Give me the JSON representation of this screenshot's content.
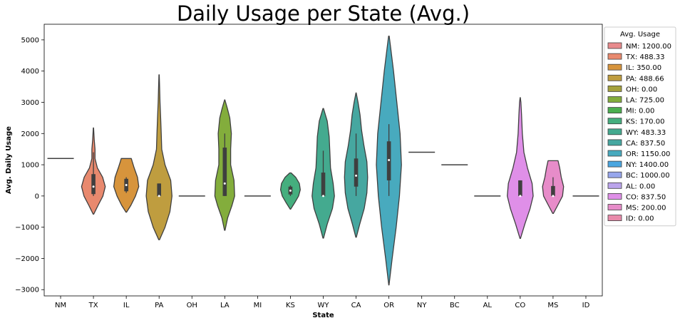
{
  "chart_data": {
    "type": "violin",
    "title": "Daily Usage per State (Avg.)",
    "xlabel": "State",
    "ylabel": "Avg. Daily Usage",
    "ylim": [
      -3200,
      5500
    ],
    "yticks": [
      -3000,
      -2000,
      -1000,
      0,
      1000,
      2000,
      3000,
      4000,
      5000
    ],
    "ytick_labels": [
      "−3000",
      "−2000",
      "−1000",
      "0",
      "1000",
      "2000",
      "3000",
      "4000",
      "5000"
    ],
    "grid": false,
    "legend": {
      "title": "Avg. Usage",
      "placement": "outside-right"
    },
    "categories": [
      "NM",
      "TX",
      "IL",
      "PA",
      "OH",
      "LA",
      "MI",
      "KS",
      "WY",
      "CA",
      "OR",
      "NY",
      "BC",
      "AL",
      "CO",
      "MS",
      "ID"
    ],
    "series": [
      {
        "state": "NM",
        "legend": "NM: 1200.00",
        "color": "#e88a8c",
        "min": 1200,
        "max": 1200,
        "q1": 1200,
        "q3": 1200,
        "median": 1200,
        "wlo": 1200,
        "whi": 1200,
        "profile": []
      },
      {
        "state": "TX",
        "legend": "TX: 488.33",
        "color": "#e8896e",
        "min": -580,
        "max": 2180,
        "q1": 60,
        "q3": 700,
        "median": 300,
        "wlo": 0,
        "whi": 1400,
        "profile": [
          [
            -580,
            0.02
          ],
          [
            -300,
            0.35
          ],
          [
            0,
            0.72
          ],
          [
            300,
            0.9
          ],
          [
            600,
            0.7
          ],
          [
            900,
            0.3
          ],
          [
            1200,
            0.12
          ],
          [
            1500,
            0.12
          ],
          [
            1800,
            0.06
          ],
          [
            2180,
            0.01
          ]
        ]
      },
      {
        "state": "IL",
        "legend": "IL: 350.00",
        "color": "#d7943c",
        "min": -520,
        "max": 1200,
        "q1": 150,
        "q3": 550,
        "median": 350,
        "wlo": 100,
        "whi": 600,
        "profile": [
          [
            -520,
            0.02
          ],
          [
            -300,
            0.35
          ],
          [
            0,
            0.7
          ],
          [
            300,
            0.95
          ],
          [
            600,
            0.85
          ],
          [
            900,
            0.6
          ],
          [
            1100,
            0.45
          ],
          [
            1200,
            0.38
          ]
        ]
      },
      {
        "state": "PA",
        "legend": "PA: 488.66",
        "color": "#bf9d3f",
        "min": -1400,
        "max": 3880,
        "q1": 0,
        "q3": 400,
        "median": 0,
        "wlo": 0,
        "whi": 400,
        "profile": [
          [
            -1400,
            0.03
          ],
          [
            -1000,
            0.45
          ],
          [
            -500,
            0.82
          ],
          [
            0,
            0.98
          ],
          [
            500,
            0.88
          ],
          [
            1000,
            0.45
          ],
          [
            1500,
            0.2
          ],
          [
            2000,
            0.16
          ],
          [
            2500,
            0.12
          ],
          [
            3000,
            0.07
          ],
          [
            3500,
            0.04
          ],
          [
            3880,
            0.01
          ]
        ]
      },
      {
        "state": "OH",
        "legend": "OH: 0.00",
        "color": "#a4a13c",
        "min": 0,
        "max": 0,
        "q1": 0,
        "q3": 0,
        "median": 0,
        "wlo": 0,
        "whi": 0,
        "profile": []
      },
      {
        "state": "LA",
        "legend": "LA: 725.00",
        "color": "#83ad3c",
        "min": -1100,
        "max": 3080,
        "q1": 0,
        "q3": 1550,
        "median": 400,
        "wlo": 0,
        "whi": 2000,
        "profile": [
          [
            -1100,
            0.02
          ],
          [
            -700,
            0.22
          ],
          [
            -300,
            0.55
          ],
          [
            0,
            0.75
          ],
          [
            500,
            0.7
          ],
          [
            1000,
            0.45
          ],
          [
            1500,
            0.45
          ],
          [
            2000,
            0.5
          ],
          [
            2500,
            0.38
          ],
          [
            2800,
            0.2
          ],
          [
            3080,
            0.01
          ]
        ]
      },
      {
        "state": "MI",
        "legend": "MI: 0.00",
        "color": "#4bae4f",
        "min": 0,
        "max": 0,
        "q1": 0,
        "q3": 0,
        "median": 0,
        "wlo": 0,
        "whi": 0,
        "profile": []
      },
      {
        "state": "KS",
        "legend": "KS: 170.00",
        "color": "#45ae7e",
        "min": -420,
        "max": 740,
        "q1": 50,
        "q3": 300,
        "median": 170,
        "wlo": 0,
        "whi": 340,
        "profile": [
          [
            -420,
            0.02
          ],
          [
            -200,
            0.35
          ],
          [
            0,
            0.62
          ],
          [
            200,
            0.75
          ],
          [
            400,
            0.68
          ],
          [
            600,
            0.4
          ],
          [
            740,
            0.05
          ]
        ]
      },
      {
        "state": "WY",
        "legend": "WY: 483.33",
        "color": "#44aa8f",
        "min": -1350,
        "max": 2800,
        "q1": 0,
        "q3": 750,
        "median": 0,
        "wlo": 0,
        "whi": 1450,
        "profile": [
          [
            -1350,
            0.02
          ],
          [
            -900,
            0.3
          ],
          [
            -400,
            0.7
          ],
          [
            0,
            0.85
          ],
          [
            400,
            0.75
          ],
          [
            900,
            0.55
          ],
          [
            1400,
            0.5
          ],
          [
            1900,
            0.45
          ],
          [
            2400,
            0.3
          ],
          [
            2800,
            0.02
          ]
        ]
      },
      {
        "state": "CA",
        "legend": "CA: 837.50",
        "color": "#46a7a0",
        "min": -1320,
        "max": 3300,
        "q1": 300,
        "q3": 1200,
        "median": 650,
        "wlo": 0,
        "whi": 2000,
        "profile": [
          [
            -1320,
            0.02
          ],
          [
            -900,
            0.28
          ],
          [
            -400,
            0.62
          ],
          [
            100,
            0.82
          ],
          [
            600,
            0.88
          ],
          [
            1100,
            0.82
          ],
          [
            1600,
            0.6
          ],
          [
            2100,
            0.42
          ],
          [
            2600,
            0.3
          ],
          [
            3000,
            0.15
          ],
          [
            3300,
            0.01
          ]
        ]
      },
      {
        "state": "OR",
        "legend": "OR: 1150.00",
        "color": "#48aabe",
        "min": -2850,
        "max": 5120,
        "q1": 500,
        "q3": 1750,
        "median": 1150,
        "wlo": 0,
        "whi": 2300,
        "profile": [
          [
            -2850,
            0.01
          ],
          [
            -2000,
            0.25
          ],
          [
            -1000,
            0.55
          ],
          [
            0,
            0.8
          ],
          [
            1000,
            0.95
          ],
          [
            2000,
            0.85
          ],
          [
            3000,
            0.6
          ],
          [
            4000,
            0.35
          ],
          [
            4800,
            0.12
          ],
          [
            5120,
            0.02
          ]
        ]
      },
      {
        "state": "NY",
        "legend": "NY: 1400.00",
        "color": "#4aa6e0",
        "min": 1400,
        "max": 1400,
        "q1": 1400,
        "q3": 1400,
        "median": 1400,
        "wlo": 1400,
        "whi": 1400,
        "profile": []
      },
      {
        "state": "BC",
        "legend": "BC: 1000.00",
        "color": "#97a6ec",
        "min": 1000,
        "max": 1000,
        "q1": 1000,
        "q3": 1000,
        "median": 1000,
        "wlo": 1000,
        "whi": 1000,
        "profile": []
      },
      {
        "state": "AL",
        "legend": "AL: 0.00",
        "color": "#bba4ec",
        "min": 0,
        "max": 0,
        "q1": 0,
        "q3": 0,
        "median": 0,
        "wlo": 0,
        "whi": 0,
        "profile": []
      },
      {
        "state": "CO",
        "legend": "CO: 837.50",
        "color": "#df8fe8",
        "min": -1360,
        "max": 3150,
        "q1": 0,
        "q3": 500,
        "median": 0,
        "wlo": 0,
        "whi": 500,
        "profile": [
          [
            -1360,
            0.02
          ],
          [
            -900,
            0.35
          ],
          [
            -400,
            0.75
          ],
          [
            0,
            0.98
          ],
          [
            400,
            0.9
          ],
          [
            900,
            0.55
          ],
          [
            1400,
            0.28
          ],
          [
            2000,
            0.16
          ],
          [
            2600,
            0.1
          ],
          [
            3000,
            0.05
          ],
          [
            3150,
            0.01
          ]
        ]
      },
      {
        "state": "MS",
        "legend": "MS: 200.00",
        "color": "#e78cc9",
        "min": -560,
        "max": 1130,
        "q1": 0,
        "q3": 320,
        "median": 0,
        "wlo": 0,
        "whi": 600,
        "profile": [
          [
            -560,
            0.02
          ],
          [
            -300,
            0.35
          ],
          [
            0,
            0.72
          ],
          [
            300,
            0.8
          ],
          [
            600,
            0.62
          ],
          [
            900,
            0.5
          ],
          [
            1130,
            0.38
          ]
        ]
      },
      {
        "state": "ID",
        "legend": "ID: 0.00",
        "color": "#e88aaa",
        "min": 0,
        "max": 0,
        "q1": 0,
        "q3": 0,
        "median": 0,
        "wlo": 0,
        "whi": 0,
        "profile": []
      }
    ]
  }
}
